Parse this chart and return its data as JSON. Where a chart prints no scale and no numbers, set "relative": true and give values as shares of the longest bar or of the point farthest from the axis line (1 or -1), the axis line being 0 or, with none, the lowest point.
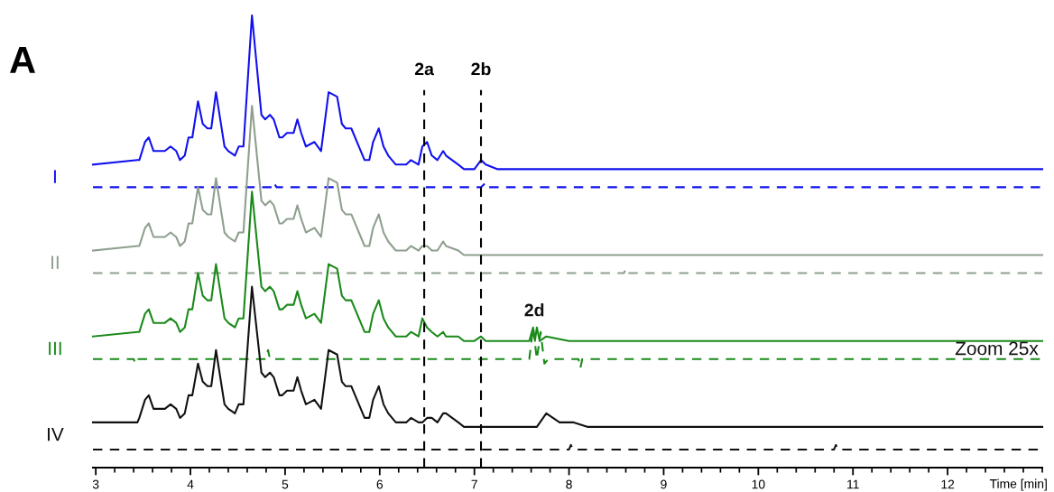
{
  "chart_data": {
    "type": "line",
    "title": "A",
    "xlabel": "Time [min]",
    "relative": true,
    "grid": false,
    "legend": false,
    "marker": "none",
    "xlim": [
      2.97,
      13.0
    ],
    "xticks": [
      3,
      4,
      5,
      6,
      7,
      8,
      9,
      10,
      11,
      12
    ],
    "ref_lines": [
      {
        "axis": "x",
        "value": 6.47,
        "label": "2a",
        "color": "#000000",
        "line_style": "dashed"
      },
      {
        "axis": "x",
        "value": 7.07,
        "label": "2b",
        "color": "#000000",
        "line_style": "dashed"
      }
    ],
    "annotations": [
      "2d",
      "Zoom 25x"
    ],
    "series": [
      {
        "name": "I",
        "color": "#1010f0",
        "line_style": "solid",
        "x": [
          2.97,
          3.44,
          3.46,
          3.52,
          3.56,
          3.61,
          3.73,
          3.79,
          3.85,
          3.89,
          3.94,
          3.98,
          4.02,
          4.08,
          4.13,
          4.18,
          4.22,
          4.27,
          4.36,
          4.4,
          4.47,
          4.51,
          4.56,
          4.65,
          4.75,
          4.79,
          4.84,
          4.88,
          4.94,
          4.97,
          5.02,
          5.09,
          5.13,
          5.17,
          5.22,
          5.31,
          5.38,
          5.46,
          5.55,
          5.6,
          5.64,
          5.7,
          5.78,
          5.84,
          5.89,
          5.93,
          5.99,
          6.04,
          6.09,
          6.17,
          6.28,
          6.33,
          6.41,
          6.45,
          6.5,
          6.55,
          6.61,
          6.67,
          6.7,
          6.83,
          6.89,
          7.0,
          7.07,
          7.12,
          7.24,
          8.7,
          13.0
        ],
        "values": [
          0.67,
          0.68,
          0.68,
          0.72,
          0.73,
          0.7,
          0.7,
          0.71,
          0.7,
          0.68,
          0.69,
          0.73,
          0.73,
          0.81,
          0.76,
          0.75,
          0.75,
          0.83,
          0.71,
          0.7,
          0.69,
          0.71,
          0.71,
          1.0,
          0.78,
          0.77,
          0.78,
          0.77,
          0.73,
          0.73,
          0.74,
          0.74,
          0.77,
          0.74,
          0.71,
          0.72,
          0.7,
          0.83,
          0.82,
          0.76,
          0.75,
          0.75,
          0.71,
          0.68,
          0.68,
          0.72,
          0.75,
          0.71,
          0.69,
          0.67,
          0.67,
          0.68,
          0.67,
          0.71,
          0.72,
          0.69,
          0.68,
          0.7,
          0.69,
          0.67,
          0.66,
          0.66,
          0.68,
          0.67,
          0.66,
          0.66,
          0.66
        ]
      },
      {
        "color": "#1010f0",
        "line_style": "dashed",
        "x": [
          2.97,
          4.86,
          4.88,
          4.91,
          7.07,
          7.12,
          7.15,
          13.0
        ],
        "values": [
          0.62,
          0.62,
          0.63,
          0.62,
          0.62,
          0.63,
          0.62,
          0.62
        ]
      },
      {
        "name": "II",
        "color": "#8f9f8f",
        "line_style": "solid",
        "x": [
          2.97,
          3.44,
          3.46,
          3.52,
          3.56,
          3.61,
          3.73,
          3.79,
          3.85,
          3.89,
          3.94,
          3.98,
          4.02,
          4.08,
          4.13,
          4.18,
          4.22,
          4.27,
          4.36,
          4.4,
          4.47,
          4.51,
          4.56,
          4.65,
          4.75,
          4.79,
          4.84,
          4.88,
          4.94,
          4.97,
          5.02,
          5.09,
          5.13,
          5.17,
          5.22,
          5.31,
          5.38,
          5.46,
          5.55,
          5.6,
          5.64,
          5.7,
          5.78,
          5.84,
          5.89,
          5.93,
          5.99,
          6.04,
          6.09,
          6.17,
          6.28,
          6.33,
          6.41,
          6.45,
          6.5,
          6.55,
          6.61,
          6.67,
          6.7,
          6.83,
          6.89,
          7.0,
          7.07,
          7.12,
          7.24,
          8.7,
          13.0
        ],
        "values": [
          0.48,
          0.49,
          0.49,
          0.53,
          0.54,
          0.51,
          0.51,
          0.52,
          0.51,
          0.49,
          0.5,
          0.54,
          0.54,
          0.62,
          0.57,
          0.56,
          0.56,
          0.64,
          0.52,
          0.51,
          0.5,
          0.52,
          0.52,
          0.8,
          0.59,
          0.58,
          0.59,
          0.58,
          0.54,
          0.54,
          0.55,
          0.55,
          0.58,
          0.55,
          0.52,
          0.53,
          0.51,
          0.64,
          0.63,
          0.57,
          0.56,
          0.56,
          0.52,
          0.49,
          0.49,
          0.53,
          0.56,
          0.52,
          0.5,
          0.48,
          0.48,
          0.49,
          0.48,
          0.49,
          0.49,
          0.48,
          0.48,
          0.5,
          0.49,
          0.48,
          0.47,
          0.47,
          0.47,
          0.47,
          0.47,
          0.47,
          0.47
        ]
      },
      {
        "color": "#8f9f8f",
        "line_style": "dashed",
        "x": [
          2.97,
          8.58,
          8.6,
          8.62,
          13.0
        ],
        "values": [
          0.43,
          0.43,
          0.44,
          0.43,
          0.43
        ]
      },
      {
        "name": "III",
        "color": "#1a8a1a",
        "line_style": "solid",
        "x": [
          2.97,
          3.44,
          3.46,
          3.52,
          3.56,
          3.61,
          3.73,
          3.79,
          3.85,
          3.89,
          3.94,
          3.98,
          4.02,
          4.08,
          4.13,
          4.18,
          4.22,
          4.27,
          4.36,
          4.4,
          4.47,
          4.51,
          4.56,
          4.65,
          4.75,
          4.79,
          4.84,
          4.88,
          4.94,
          4.97,
          5.02,
          5.09,
          5.13,
          5.17,
          5.22,
          5.31,
          5.38,
          5.46,
          5.55,
          5.6,
          5.64,
          5.7,
          5.78,
          5.84,
          5.89,
          5.93,
          5.99,
          6.04,
          6.09,
          6.17,
          6.28,
          6.33,
          6.41,
          6.45,
          6.5,
          6.55,
          6.61,
          6.67,
          6.7,
          6.83,
          6.89,
          7.0,
          7.07,
          7.12,
          7.24,
          7.58,
          7.62,
          7.64,
          7.66,
          7.69,
          7.76,
          8.0,
          8.7,
          13.0
        ],
        "values": [
          0.29,
          0.3,
          0.3,
          0.34,
          0.35,
          0.32,
          0.32,
          0.33,
          0.32,
          0.3,
          0.31,
          0.35,
          0.35,
          0.43,
          0.38,
          0.37,
          0.37,
          0.45,
          0.33,
          0.32,
          0.31,
          0.33,
          0.33,
          0.61,
          0.4,
          0.39,
          0.4,
          0.39,
          0.35,
          0.35,
          0.36,
          0.36,
          0.39,
          0.36,
          0.33,
          0.34,
          0.32,
          0.45,
          0.44,
          0.38,
          0.37,
          0.37,
          0.33,
          0.3,
          0.3,
          0.34,
          0.37,
          0.33,
          0.31,
          0.29,
          0.29,
          0.3,
          0.29,
          0.33,
          0.31,
          0.3,
          0.29,
          0.3,
          0.29,
          0.29,
          0.28,
          0.28,
          0.29,
          0.28,
          0.28,
          0.28,
          0.31,
          0.28,
          0.31,
          0.28,
          0.29,
          0.28,
          0.28,
          0.28
        ]
      },
      {
        "color": "#1a8a1a",
        "line_style": "dashed",
        "x": [
          2.97,
          3.4,
          3.42,
          3.44,
          4.8,
          4.82,
          4.84,
          7.58,
          7.62,
          7.66,
          7.7,
          7.74,
          7.78,
          8.1,
          8.12,
          8.14,
          13.0
        ],
        "values": [
          0.24,
          0.24,
          0.23,
          0.24,
          0.24,
          0.26,
          0.24,
          0.24,
          0.31,
          0.24,
          0.3,
          0.23,
          0.24,
          0.24,
          0.22,
          0.24,
          0.24
        ]
      },
      {
        "name": "IV",
        "color": "#111111",
        "line_style": "solid",
        "x": [
          2.97,
          3.44,
          3.46,
          3.52,
          3.56,
          3.61,
          3.73,
          3.79,
          3.85,
          3.89,
          3.94,
          3.98,
          4.02,
          4.08,
          4.13,
          4.18,
          4.22,
          4.27,
          4.36,
          4.4,
          4.47,
          4.51,
          4.56,
          4.65,
          4.75,
          4.79,
          4.84,
          4.88,
          4.94,
          4.97,
          5.02,
          5.09,
          5.13,
          5.17,
          5.22,
          5.31,
          5.38,
          5.46,
          5.55,
          5.6,
          5.64,
          5.7,
          5.78,
          5.84,
          5.89,
          5.93,
          5.99,
          6.04,
          6.09,
          6.17,
          6.28,
          6.33,
          6.41,
          6.45,
          6.5,
          6.55,
          6.61,
          6.67,
          6.7,
          6.83,
          6.89,
          7.0,
          7.07,
          7.12,
          7.24,
          7.66,
          7.76,
          7.9,
          8.05,
          8.2,
          13.0
        ],
        "values": [
          0.1,
          0.1,
          0.11,
          0.15,
          0.16,
          0.13,
          0.13,
          0.14,
          0.13,
          0.11,
          0.12,
          0.16,
          0.16,
          0.23,
          0.19,
          0.18,
          0.18,
          0.26,
          0.14,
          0.13,
          0.12,
          0.14,
          0.14,
          0.4,
          0.21,
          0.2,
          0.21,
          0.2,
          0.16,
          0.16,
          0.17,
          0.17,
          0.2,
          0.17,
          0.14,
          0.15,
          0.13,
          0.26,
          0.25,
          0.19,
          0.18,
          0.18,
          0.14,
          0.11,
          0.11,
          0.15,
          0.18,
          0.14,
          0.12,
          0.1,
          0.1,
          0.11,
          0.1,
          0.1,
          0.11,
          0.11,
          0.1,
          0.12,
          0.12,
          0.1,
          0.09,
          0.09,
          0.09,
          0.09,
          0.09,
          0.09,
          0.12,
          0.1,
          0.1,
          0.09,
          0.09
        ]
      },
      {
        "color": "#111111",
        "line_style": "dashed",
        "x": [
          2.97,
          8.0,
          8.02,
          8.04,
          10.8,
          10.82,
          10.84,
          13.0
        ],
        "values": [
          0.04,
          0.04,
          0.05,
          0.04,
          0.04,
          0.05,
          0.04,
          0.04
        ]
      }
    ]
  }
}
